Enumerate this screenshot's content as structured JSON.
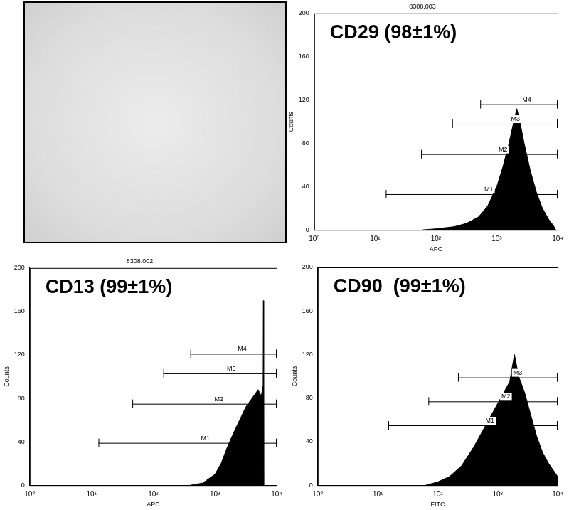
{
  "chart_data": [
    {
      "type": "area",
      "title": "CD29 (98±1%)",
      "subtitle": "8308.003",
      "xlabel": "APC",
      "ylabel": "Counts",
      "log": "x",
      "grid": false,
      "color": "#000000",
      "x": [
        60,
        100,
        200,
        316,
        501,
        708,
        1000,
        1259,
        1585,
        1905,
        2138,
        2399,
        2818,
        3548,
        4467,
        5623,
        7079,
        8511,
        9333
      ],
      "values": [
        0,
        1,
        3,
        6,
        12,
        22,
        40,
        58,
        80,
        100,
        112,
        100,
        80,
        55,
        35,
        20,
        10,
        4,
        0
      ],
      "xlim": [
        1,
        10000
      ],
      "xticks": [
        {
          "value": 1,
          "label": "10⁰"
        },
        {
          "value": 10,
          "label": "10¹"
        },
        {
          "value": 100,
          "label": "10²"
        },
        {
          "value": 1000,
          "label": "10³"
        },
        {
          "value": 10000,
          "label": "10⁴"
        }
      ],
      "ylim": [
        0,
        200
      ],
      "yticks": [
        0,
        40,
        80,
        120,
        160,
        200
      ],
      "gates": [
        {
          "label": "M1",
          "x": [
            15,
            10000
          ],
          "y": 33
        },
        {
          "label": "M2",
          "x": [
            57,
            10000
          ],
          "y": 70
        },
        {
          "label": "M3",
          "x": [
            185,
            10000
          ],
          "y": 98
        },
        {
          "label": "M4",
          "x": [
            535,
            10000
          ],
          "y": 116
        }
      ]
    },
    {
      "type": "area",
      "title": "CD13 (99±1%)",
      "subtitle": "8308.002",
      "xlabel": "APC",
      "ylabel": "Counts",
      "log": "x",
      "grid": false,
      "color": "#000000",
      "x": [
        398,
        631,
        1000,
        1259,
        1585,
        1995,
        2512,
        3162,
        3981,
        5012,
        5623,
        6026,
        6095,
        6166
      ],
      "values": [
        0,
        2,
        10,
        20,
        35,
        48,
        60,
        72,
        80,
        88,
        82,
        92,
        170,
        0
      ],
      "xlim": [
        1,
        10000
      ],
      "xticks": [
        {
          "value": 1,
          "label": "10⁰"
        },
        {
          "value": 10,
          "label": "10¹"
        },
        {
          "value": 100,
          "label": "10²"
        },
        {
          "value": 1000,
          "label": "10³"
        },
        {
          "value": 10000,
          "label": "10⁴"
        }
      ],
      "ylim": [
        0,
        200
      ],
      "yticks": [
        0,
        40,
        80,
        120,
        160,
        200
      ],
      "gates": [
        {
          "label": "M1",
          "x": [
            13,
            10000
          ],
          "y": 39
        },
        {
          "label": "M2",
          "x": [
            46,
            10000
          ],
          "y": 75
        },
        {
          "label": "M3",
          "x": [
            146,
            10000
          ],
          "y": 103
        },
        {
          "label": "M4",
          "x": [
            400,
            10000
          ],
          "y": 121
        }
      ]
    },
    {
      "type": "area",
      "title": "CD90  (99±1%)",
      "xlabel": "FITC",
      "ylabel": "Counts",
      "log": "x",
      "grid": false,
      "color": "#000000",
      "x": [
        63,
        100,
        158,
        251,
        398,
        631,
        891,
        1259,
        1585,
        1905,
        2239,
        2818,
        3548,
        4467,
        5623,
        7079,
        8913,
        10000
      ],
      "values": [
        0,
        3,
        8,
        18,
        35,
        55,
        70,
        85,
        95,
        120,
        100,
        85,
        65,
        45,
        30,
        20,
        12,
        8
      ],
      "xlim": [
        1,
        10000
      ],
      "xticks": [
        {
          "value": 1,
          "label": "10⁰"
        },
        {
          "value": 10,
          "label": "10¹"
        },
        {
          "value": 100,
          "label": "10²"
        },
        {
          "value": 1000,
          "label": "10³"
        },
        {
          "value": 10000,
          "label": "10⁴"
        }
      ],
      "ylim": [
        0,
        200
      ],
      "yticks": [
        0,
        40,
        80,
        120,
        160,
        200
      ],
      "gates": [
        {
          "label": "M1",
          "x": [
            15,
            10000
          ],
          "y": 55
        },
        {
          "label": "M2",
          "x": [
            70,
            10000
          ],
          "y": 77
        },
        {
          "label": "M3",
          "x": [
            218,
            10000
          ],
          "y": 99
        }
      ]
    }
  ]
}
